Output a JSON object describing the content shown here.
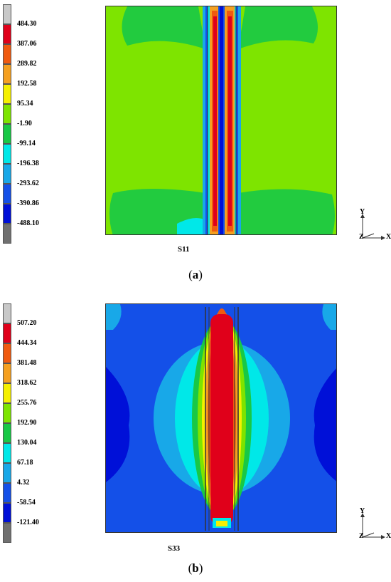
{
  "panels": [
    {
      "id": "a",
      "field": "S11",
      "caption_letter": "a",
      "legend": {
        "labels": [
          "484.30",
          "387.06",
          "289.82",
          "192.58",
          "95.34",
          "-1.90",
          "-99.14",
          "-196.38",
          "-293.62",
          "-390.86",
          "-488.10"
        ],
        "colors": [
          "#c8c8c8",
          "#e0001a",
          "#f05a10",
          "#f5a020",
          "#f5f000",
          "#7ee400",
          "#18c846",
          "#00e8e8",
          "#18a8e8",
          "#1450e8",
          "#0010d8",
          "#707070"
        ]
      }
    },
    {
      "id": "b",
      "field": "S33",
      "caption_letter": "b",
      "legend": {
        "labels": [
          "507.20",
          "444.34",
          "381.48",
          "318.62",
          "255.76",
          "192.90",
          "130.04",
          "67.18",
          "4.32",
          "-58.54",
          "-121.40"
        ],
        "colors": [
          "#c8c8c8",
          "#e0001a",
          "#f05a10",
          "#f5a020",
          "#f5f000",
          "#7ee400",
          "#18c846",
          "#00e8e8",
          "#18a8e8",
          "#1450e8",
          "#0010d8",
          "#707070"
        ]
      }
    }
  ],
  "triad": {
    "y": "Y",
    "z": "Z",
    "x": "X"
  }
}
